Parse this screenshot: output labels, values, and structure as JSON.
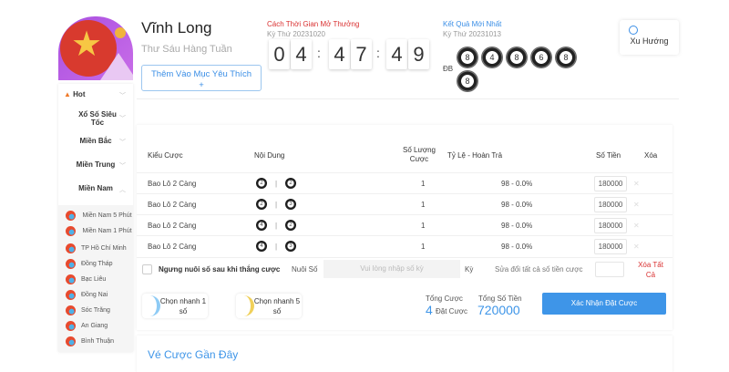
{
  "header": {
    "title": "Vĩnh Long",
    "schedule": "Thư Sáu Hàng Tuần",
    "favorite_label": "Thêm Vào Mục Yêu Thích",
    "favorite_plus": "+"
  },
  "countdown": {
    "label": "Cách Thời Gian Mở Thưởng",
    "draw": "Kỳ Thứ 20231020",
    "digits": [
      "0",
      "4",
      "4",
      "7",
      "4",
      "9"
    ],
    "sep": ":"
  },
  "result": {
    "label": "Kết Quả Mới Nhất",
    "draw": "Kỳ Thứ 20231013",
    "db_label": "ĐB",
    "balls": [
      "8",
      "4",
      "8",
      "6",
      "8"
    ],
    "extra_ball": "8"
  },
  "trend": {
    "label": "Xu Hướng"
  },
  "sidebar": {
    "items": [
      {
        "label": "Hot"
      },
      {
        "label": "Xổ Số Siêu Tốc"
      },
      {
        "label": "Miền Bắc"
      },
      {
        "label": "Miền Trung"
      },
      {
        "label": "Miền Nam"
      }
    ],
    "sub_items": [
      {
        "label": "Miền Nam 5 Phút"
      },
      {
        "label": "Miền Nam 1 Phút"
      },
      {
        "label": "TP Hồ Chí Minh"
      },
      {
        "label": "Đồng Tháp"
      },
      {
        "label": "Bạc Liêu"
      },
      {
        "label": "Đồng Nai"
      },
      {
        "label": "Sóc Trăng"
      },
      {
        "label": "An Giang"
      },
      {
        "label": "Bình Thuận"
      }
    ]
  },
  "table": {
    "headers": {
      "type": "Kiểu Cược",
      "content": "Nội Dung",
      "count": "Số Lượng Cược",
      "rate": "Tỷ Lệ - Hoàn Trả",
      "amount": "Số Tiền",
      "delete": "Xóa"
    },
    "rows": [
      {
        "type": "Bao Lô 2 Càng",
        "a": "2",
        "b": "2",
        "count": "1",
        "rate": "98 - 0.0%",
        "amount": "180000"
      },
      {
        "type": "Bao Lô 2 Càng",
        "a": "2",
        "b": "3",
        "count": "1",
        "rate": "98 - 0.0%",
        "amount": "180000"
      },
      {
        "type": "Bao Lô 2 Càng",
        "a": "4",
        "b": "2",
        "count": "1",
        "rate": "98 - 0.0%",
        "amount": "180000"
      },
      {
        "type": "Bao Lô 2 Càng",
        "a": "4",
        "b": "3",
        "count": "1",
        "rate": "98 - 0.0%",
        "amount": "180000"
      }
    ]
  },
  "footer": {
    "stop_label": "Ngưng nuôi số sau khi thắng cược",
    "nuoi_label": "Nuôi Số",
    "nuoi_placeholder": "Vui lòng nhập số kỳ",
    "ky": "Kỳ",
    "edit_all": "Sửa đổi tất cả số tiền cược",
    "delete_all": "Xóa Tất Cả"
  },
  "summary": {
    "quick1": "Chọn nhanh 1 số",
    "quick5": "Chọn nhanh 5 số",
    "total_bets_label": "Tổng Cược",
    "total_bets": "4",
    "bets_unit": "Đặt Cược",
    "total_amount_label": "Tổng Số Tiền",
    "total_amount": "720000",
    "confirm": "Xác Nhận Đặt Cược"
  },
  "recent": {
    "title": "Vé Cược Gần Đây"
  },
  "colors": {
    "accent": "#3e95e8",
    "danger": "#d93030"
  }
}
